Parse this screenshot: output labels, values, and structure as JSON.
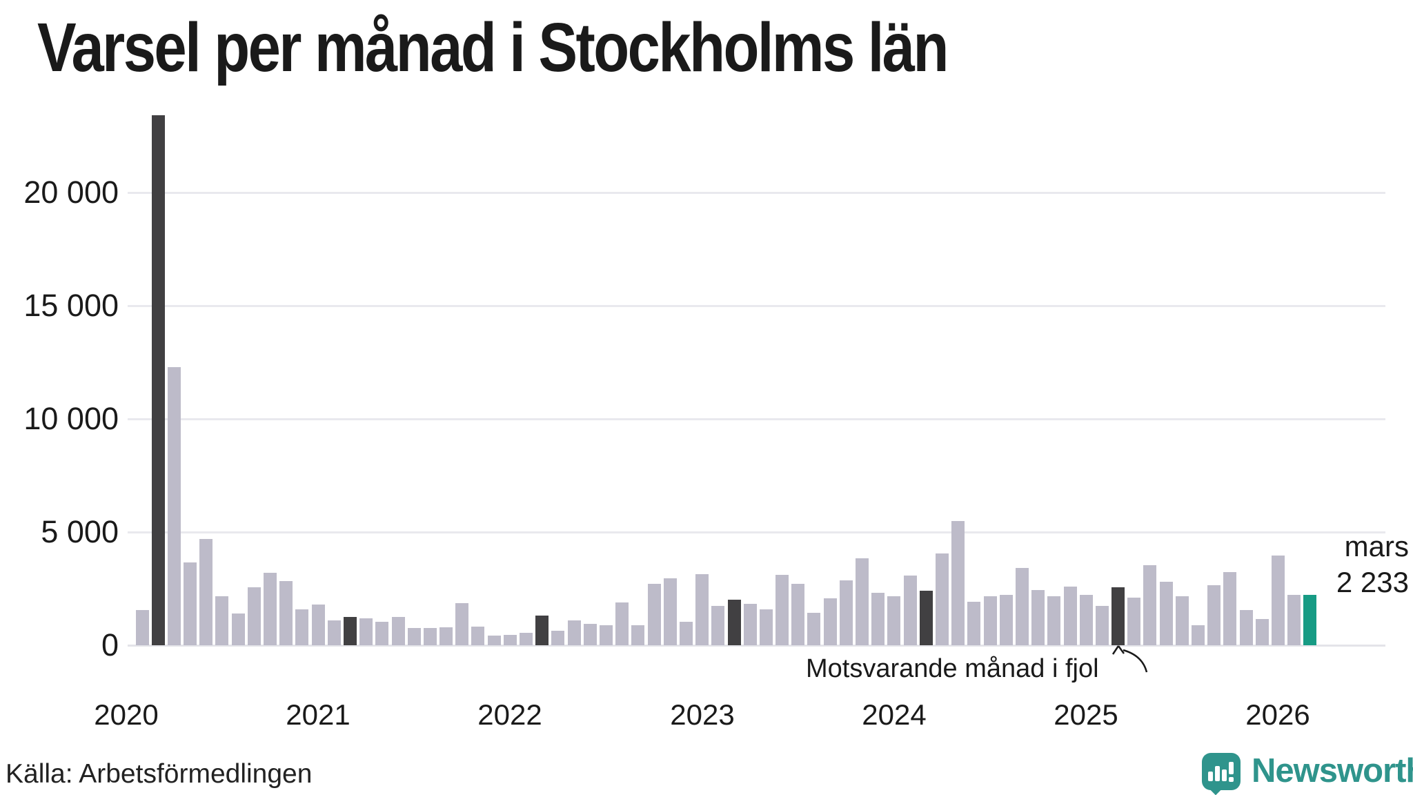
{
  "title": "Varsel per månad i Stockholms län",
  "source": "Källa: Arbetsförmedlingen",
  "logo": {
    "text": "Newsworthy",
    "color": "#2f948c"
  },
  "annotation": {
    "text": "Motsvarande månad i fjol",
    "points_to_month": "2025-03"
  },
  "current_label": {
    "line1": "mars",
    "line2": "2 233"
  },
  "colors": {
    "bar_normal": "#bdbbc9",
    "bar_highlight": "#414042",
    "bar_current": "#179b84",
    "gridline": "#e9e9ee",
    "axisline": "#e4e4e9",
    "text": "#1a1a1a"
  },
  "chart_data": {
    "type": "bar",
    "title": "Varsel per månad i Stockholms län",
    "xlabel": "",
    "ylabel": "",
    "grid": "horizontal",
    "ylim": [
      0,
      24000
    ],
    "y_ticks": [
      0,
      5000,
      10000,
      15000,
      20000
    ],
    "y_tick_labels": [
      "0",
      "5 000",
      "10 000",
      "15 000",
      "20 000"
    ],
    "x_year_ticks": [
      "2020",
      "2021",
      "2022",
      "2023",
      "2024",
      "2025",
      "2026"
    ],
    "start_month": "2020-02",
    "legend_note": "k: n=normal(gray), d=same-month-previous-years(dark), t=current-month(teal)",
    "months": [
      [
        "2020-02",
        1550,
        "n"
      ],
      [
        "2020-03",
        23400,
        "d"
      ],
      [
        "2020-04",
        12300,
        "n"
      ],
      [
        "2020-05",
        3650,
        "n"
      ],
      [
        "2020-06",
        4700,
        "n"
      ],
      [
        "2020-07",
        2150,
        "n"
      ],
      [
        "2020-08",
        1400,
        "n"
      ],
      [
        "2020-09",
        2550,
        "n"
      ],
      [
        "2020-10",
        3200,
        "n"
      ],
      [
        "2020-11",
        2850,
        "n"
      ],
      [
        "2020-12",
        1600,
        "n"
      ],
      [
        "2021-01",
        1800,
        "n"
      ],
      [
        "2021-02",
        1100,
        "n"
      ],
      [
        "2021-03",
        1250,
        "d"
      ],
      [
        "2021-04",
        1200,
        "n"
      ],
      [
        "2021-05",
        1050,
        "n"
      ],
      [
        "2021-06",
        1250,
        "n"
      ],
      [
        "2021-07",
        750,
        "n"
      ],
      [
        "2021-08",
        770,
        "n"
      ],
      [
        "2021-09",
        800,
        "n"
      ],
      [
        "2021-10",
        1850,
        "n"
      ],
      [
        "2021-11",
        830,
        "n"
      ],
      [
        "2021-12",
        430,
        "n"
      ],
      [
        "2022-01",
        460,
        "n"
      ],
      [
        "2022-02",
        550,
        "n"
      ],
      [
        "2022-03",
        1300,
        "d"
      ],
      [
        "2022-04",
        640,
        "n"
      ],
      [
        "2022-05",
        1100,
        "n"
      ],
      [
        "2022-06",
        950,
        "n"
      ],
      [
        "2022-07",
        880,
        "n"
      ],
      [
        "2022-08",
        1900,
        "n"
      ],
      [
        "2022-09",
        890,
        "n"
      ],
      [
        "2022-10",
        2700,
        "n"
      ],
      [
        "2022-11",
        2950,
        "n"
      ],
      [
        "2022-12",
        1050,
        "n"
      ],
      [
        "2023-01",
        3150,
        "n"
      ],
      [
        "2023-02",
        1740,
        "n"
      ],
      [
        "2023-03",
        2000,
        "d"
      ],
      [
        "2023-04",
        1830,
        "n"
      ],
      [
        "2023-05",
        1590,
        "n"
      ],
      [
        "2023-06",
        3100,
        "n"
      ],
      [
        "2023-07",
        2700,
        "n"
      ],
      [
        "2023-08",
        1430,
        "n"
      ],
      [
        "2023-09",
        2070,
        "n"
      ],
      [
        "2023-10",
        2870,
        "n"
      ],
      [
        "2023-11",
        3840,
        "n"
      ],
      [
        "2023-12",
        2320,
        "n"
      ],
      [
        "2024-01",
        2170,
        "n"
      ],
      [
        "2024-02",
        3080,
        "n"
      ],
      [
        "2024-03",
        2400,
        "d"
      ],
      [
        "2024-04",
        4060,
        "n"
      ],
      [
        "2024-05",
        5500,
        "n"
      ],
      [
        "2024-06",
        1920,
        "n"
      ],
      [
        "2024-07",
        2160,
        "n"
      ],
      [
        "2024-08",
        2230,
        "n"
      ],
      [
        "2024-09",
        3400,
        "n"
      ],
      [
        "2024-10",
        2440,
        "n"
      ],
      [
        "2024-11",
        2150,
        "n"
      ],
      [
        "2024-12",
        2580,
        "n"
      ],
      [
        "2025-01",
        2230,
        "n"
      ],
      [
        "2025-02",
        1740,
        "n"
      ],
      [
        "2025-03",
        2560,
        "d"
      ],
      [
        "2025-04",
        2100,
        "n"
      ],
      [
        "2025-05",
        3540,
        "n"
      ],
      [
        "2025-06",
        2800,
        "n"
      ],
      [
        "2025-07",
        2170,
        "n"
      ],
      [
        "2025-08",
        880,
        "n"
      ],
      [
        "2025-09",
        2650,
        "n"
      ],
      [
        "2025-10",
        3230,
        "n"
      ],
      [
        "2025-11",
        1550,
        "n"
      ],
      [
        "2025-12",
        1160,
        "n"
      ],
      [
        "2026-01",
        3960,
        "n"
      ],
      [
        "2026-02",
        2230,
        "n"
      ],
      [
        "2026-03",
        2233,
        "t"
      ]
    ]
  }
}
